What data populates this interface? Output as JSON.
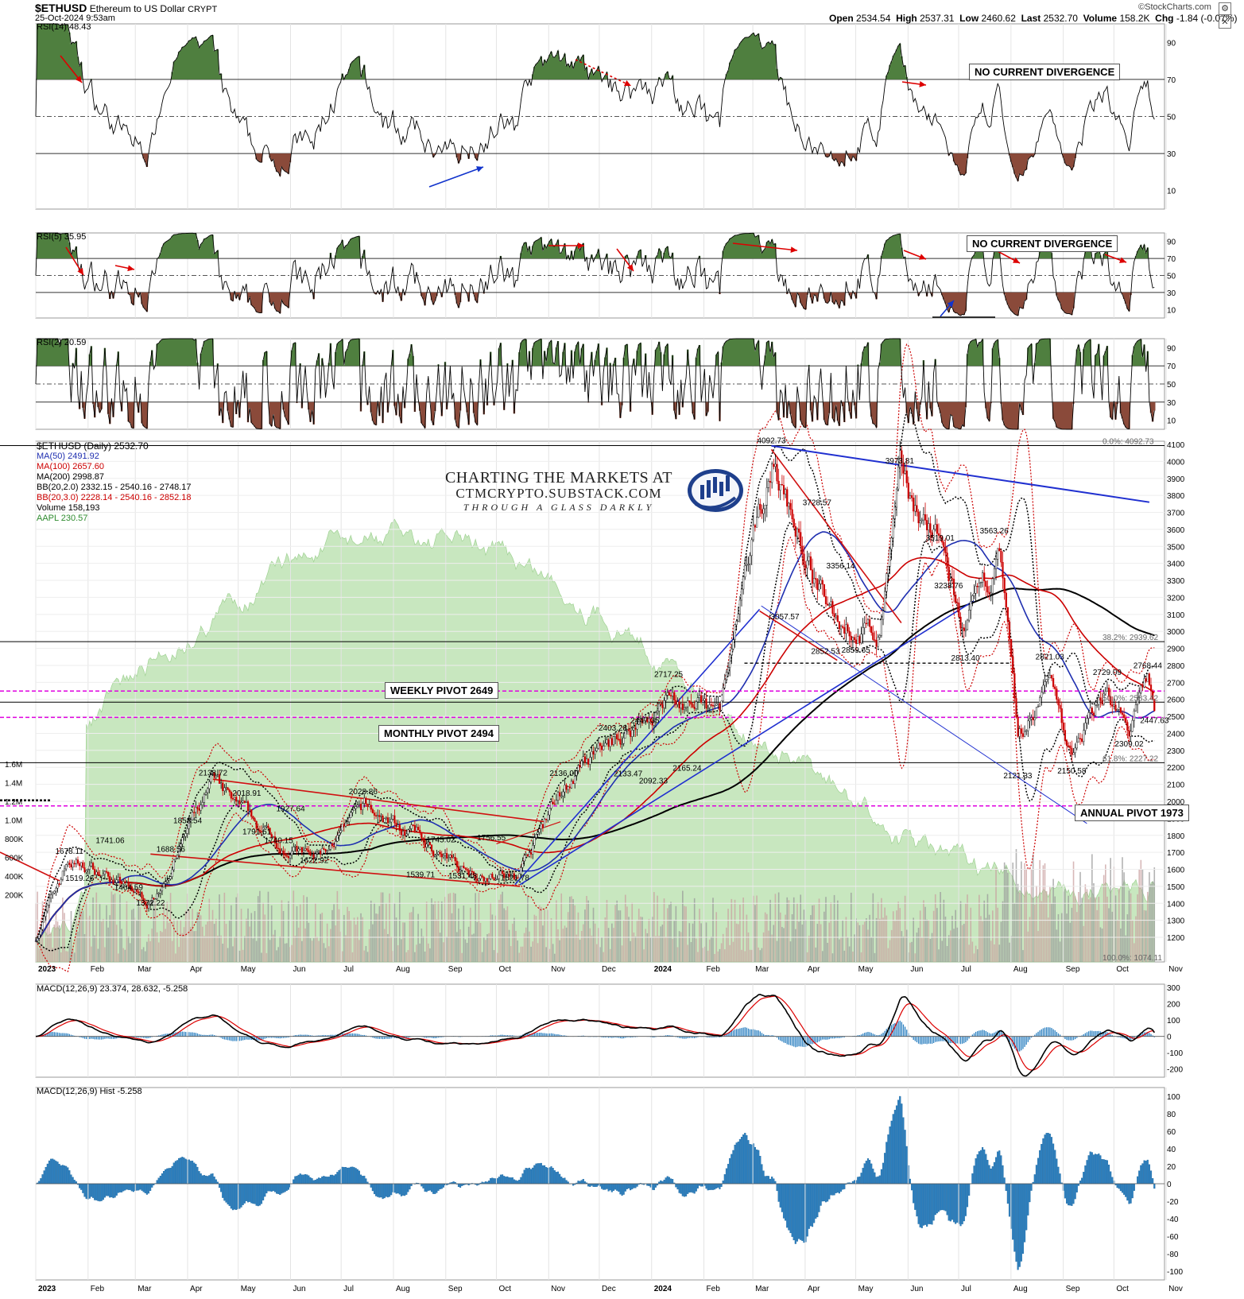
{
  "header": {
    "symbol": "$ETHUSD",
    "description": "Ethereum to US Dollar",
    "exchange": "CRYPT",
    "datetime": "25-Oct-2024 9:53am",
    "open_label": "Open",
    "open": "2534.54",
    "high_label": "High",
    "high": "2537.31",
    "low_label": "Low",
    "low": "2460.62",
    "last_label": "Last",
    "last": "2532.70",
    "volume_label": "Volume",
    "volume": "158.2K",
    "chg_label": "Chg",
    "chg": "-1.84 (-0.07%)",
    "watermark": "©StockCharts.com",
    "settings_icon": "gear-icon",
    "close_icon": "close-icon"
  },
  "logo": {
    "line1": "CHARTING THE MARKETS AT",
    "line2": "CTMCRYPTO.SUBSTACK.COM",
    "line3": "THROUGH A GLASS DARKLY"
  },
  "main_legend": [
    {
      "text": "$ETHUSD (Daily) 2532.70",
      "color": "#000000"
    },
    {
      "text": "MA(50) 2491.92",
      "color": "#1f2fb0"
    },
    {
      "text": "MA(100) 2657.60",
      "color": "#cc0000"
    },
    {
      "text": "MA(200) 2998.87",
      "color": "#000000"
    },
    {
      "text": "BB(20,2.0) 2332.15 - 2540.16 - 2748.17",
      "color": "#000000"
    },
    {
      "text": "BB(20,3.0) 2228.14 - 2540.16 - 2852.18",
      "color": "#cc0000"
    },
    {
      "text": "Volume 158,193",
      "color": "#000000"
    },
    {
      "text": "AAPL 230.57",
      "color": "#2e8b2e"
    }
  ],
  "annotations": {
    "rsi14_div": "NO CURRENT DIVERGENCE",
    "rsi5_div": "NO CURRENT DIVERGENCE",
    "weekly_pivot": "WEEKLY PIVOT 2649",
    "monthly_pivot": "MONTHLY PIVOT 2494",
    "annual_pivot": "ANNUAL PIVOT 1973"
  },
  "colors": {
    "rsi_overbought_fill": "#4f7f3f",
    "rsi_oversold_fill": "#8a4a3a",
    "aapl_area": "#bfe3b4",
    "macd_hist": "#2a7fc0",
    "pivot_magenta": "#e000e0",
    "trend_blue": "#1f2fd0",
    "trend_red": "#d01010"
  },
  "chart_data": [
    {
      "type": "line",
      "title": "RSI(14) 48.43",
      "ylim": [
        0,
        100
      ],
      "y_ticks": [
        "90",
        "70",
        "50",
        "30",
        "10"
      ],
      "levels": [
        70,
        50,
        30
      ],
      "last_value": 48.43
    },
    {
      "type": "line",
      "title": "RSI(5) 35.95",
      "ylim": [
        0,
        100
      ],
      "y_ticks": [
        "90",
        "70",
        "50",
        "30",
        "10"
      ],
      "levels": [
        70,
        50,
        30
      ],
      "last_value": 35.95
    },
    {
      "type": "line",
      "title": "RSI(2) 20.59",
      "ylim": [
        0,
        100
      ],
      "y_ticks": [
        "90",
        "70",
        "50",
        "30",
        "10"
      ],
      "levels": [
        70,
        50,
        30
      ],
      "last_value": 20.59
    },
    {
      "type": "line",
      "title": "$ETHUSD (Daily) 2532.70",
      "x_ticks": [
        "2023",
        "Feb",
        "Mar",
        "Apr",
        "May",
        "Jun",
        "Jul",
        "Aug",
        "Sep",
        "Oct",
        "Nov",
        "Dec",
        "2024",
        "Feb",
        "Mar",
        "Apr",
        "May",
        "Jun",
        "Jul",
        "Aug",
        "Sep",
        "Oct",
        "Nov"
      ],
      "ylim": [
        1074,
        4100
      ],
      "y_ticks": [
        "4100",
        "4000",
        "3900",
        "3800",
        "3700",
        "3600",
        "3500",
        "3400",
        "3300",
        "3200",
        "3100",
        "3000",
        "2900",
        "2800",
        "2700",
        "2600",
        "2500",
        "2400",
        "2300",
        "2200",
        "2100",
        "2000",
        "1900",
        "1800",
        "1700",
        "1600",
        "1500",
        "1400",
        "1300",
        "1200"
      ],
      "volume_ticks": [
        "1.6M",
        "1.4M",
        "1.2M",
        "1.0M",
        "800K",
        "600K",
        "400K",
        "200K"
      ],
      "fib_labels": [
        {
          "text": "0.0%: 4092.73",
          "value": 4092.73
        },
        {
          "text": "38.2%: 2939.62",
          "value": 2939.62
        },
        {
          "text": "50.0%: 2583.42",
          "value": 2583.42
        },
        {
          "text": "61.8%: 2227.22",
          "value": 2227.22
        },
        {
          "text": "100.0%: 1074.11",
          "value": 1074.11
        }
      ],
      "price_series": {
        "name": "$ETHUSD",
        "points": [
          {
            "date": "2023-01-01",
            "close": 1200
          },
          {
            "date": "2023-01-20",
            "close": 1650
          },
          {
            "date": "2023-02-10",
            "close": 1580
          },
          {
            "date": "2023-03-10",
            "close": 1400
          },
          {
            "date": "2023-04-15",
            "close": 2100
          },
          {
            "date": "2023-05-15",
            "close": 1820
          },
          {
            "date": "2023-06-15",
            "close": 1650
          },
          {
            "date": "2023-07-15",
            "close": 1950
          },
          {
            "date": "2023-08-15",
            "close": 1800
          },
          {
            "date": "2023-09-01",
            "close": 1640
          },
          {
            "date": "2023-10-12",
            "close": 1540
          },
          {
            "date": "2023-11-10",
            "close": 2080
          },
          {
            "date": "2023-12-10",
            "close": 2350
          },
          {
            "date": "2024-01-12",
            "close": 2600
          },
          {
            "date": "2024-02-10",
            "close": 2500
          },
          {
            "date": "2024-03-12",
            "close": 4000
          },
          {
            "date": "2024-04-15",
            "close": 3100
          },
          {
            "date": "2024-05-15",
            "close": 2950
          },
          {
            "date": "2024-05-27",
            "close": 3900
          },
          {
            "date": "2024-06-20",
            "close": 3500
          },
          {
            "date": "2024-07-05",
            "close": 2950
          },
          {
            "date": "2024-07-25",
            "close": 3450
          },
          {
            "date": "2024-08-05",
            "close": 2300
          },
          {
            "date": "2024-08-25",
            "close": 2750
          },
          {
            "date": "2024-09-06",
            "close": 2250
          },
          {
            "date": "2024-09-27",
            "close": 2680
          },
          {
            "date": "2024-10-10",
            "close": 2380
          },
          {
            "date": "2024-10-21",
            "close": 2700
          },
          {
            "date": "2024-10-25",
            "close": 2532.7
          }
        ]
      },
      "price_labels": [
        {
          "text": "4092.73",
          "date": "2024-03-12",
          "value": 4092.73
        },
        {
          "text": "3973.81",
          "date": "2024-05-27",
          "value": 3973.81
        },
        {
          "text": "3728.57",
          "date": "2024-04-08",
          "value": 3728.57
        },
        {
          "text": "3563.26",
          "date": "2024-07-22",
          "value": 3563.26
        },
        {
          "text": "3519.01",
          "date": "2024-06-20",
          "value": 3519.01
        },
        {
          "text": "3356.14",
          "date": "2024-04-22",
          "value": 3356.14
        },
        {
          "text": "3238.76",
          "date": "2024-06-25",
          "value": 3238.76
        },
        {
          "text": "3057.57",
          "date": "2024-03-20",
          "value": 3057.57
        },
        {
          "text": "2852.53",
          "date": "2024-04-13",
          "value": 2852.53
        },
        {
          "text": "2859.65",
          "date": "2024-05-01",
          "value": 2859.65
        },
        {
          "text": "2813.40",
          "date": "2024-07-05",
          "value": 2813.4
        },
        {
          "text": "2821.03",
          "date": "2024-08-24",
          "value": 2821.03
        },
        {
          "text": "2768.44",
          "date": "2024-10-21",
          "value": 2768.44
        },
        {
          "text": "2729.09",
          "date": "2024-09-27",
          "value": 2729.09
        },
        {
          "text": "2717.25",
          "date": "2024-01-11",
          "value": 2717.25
        },
        {
          "text": "2447.63",
          "date": "2024-10-25",
          "value": 2447.63
        },
        {
          "text": "2447.35",
          "date": "2023-12-28",
          "value": 2447.35
        },
        {
          "text": "2403.28",
          "date": "2023-12-09",
          "value": 2403.28
        },
        {
          "text": "2309.02",
          "date": "2024-10-10",
          "value": 2309.02
        },
        {
          "text": "2150.58",
          "date": "2024-09-06",
          "value": 2150.58
        },
        {
          "text": "2138.72",
          "date": "2023-04-16",
          "value": 2138.72
        },
        {
          "text": "2136.00",
          "date": "2023-11-10",
          "value": 2136.0
        },
        {
          "text": "2133.47",
          "date": "2023-12-18",
          "value": 2133.47
        },
        {
          "text": "2121.33",
          "date": "2024-08-05",
          "value": 2121.33
        },
        {
          "text": "2092.33",
          "date": "2024-01-02",
          "value": 2092.33
        },
        {
          "text": "2165.24",
          "date": "2024-01-22",
          "value": 2165.24
        },
        {
          "text": "2028.86",
          "date": "2023-07-14",
          "value": 2028.86
        },
        {
          "text": "2018.91",
          "date": "2023-05-06",
          "value": 2018.91
        },
        {
          "text": "1927.64",
          "date": "2023-06-01",
          "value": 1927.64
        },
        {
          "text": "1858.54",
          "date": "2023-04-01",
          "value": 1858.54
        },
        {
          "text": "1791.61",
          "date": "2023-05-12",
          "value": 1791.61
        },
        {
          "text": "1756.55",
          "date": "2023-09-28",
          "value": 1756.55
        },
        {
          "text": "1745.02",
          "date": "2023-08-29",
          "value": 1745.02
        },
        {
          "text": "1741.06",
          "date": "2023-02-14",
          "value": 1741.06
        },
        {
          "text": "1740.15",
          "date": "2023-05-25",
          "value": 1740.15
        },
        {
          "text": "1688.56",
          "date": "2023-03-22",
          "value": 1688.56
        },
        {
          "text": "1678.11",
          "date": "2023-01-21",
          "value": 1678.11
        },
        {
          "text": "1622.92",
          "date": "2023-06-15",
          "value": 1622.92
        },
        {
          "text": "1539.71",
          "date": "2023-08-17",
          "value": 1539.71
        },
        {
          "text": "1531.48",
          "date": "2023-09-11",
          "value": 1531.48
        },
        {
          "text": "1521.78",
          "date": "2023-10-12",
          "value": 1521.78
        },
        {
          "text": "1519.26",
          "date": "2023-01-27",
          "value": 1519.26
        },
        {
          "text": "1464.59",
          "date": "2023-02-25",
          "value": 1464.59
        },
        {
          "text": "1372.22",
          "date": "2023-03-10",
          "value": 1372.22
        }
      ],
      "pivots": [
        {
          "name": "WEEKLY PIVOT 2649",
          "value": 2649
        },
        {
          "name": "MONTHLY PIVOT 2494",
          "value": 2494
        },
        {
          "name": "ANNUAL PIVOT 1973",
          "value": 1973
        }
      ],
      "ma_levels": {
        "MA50": 2491.92,
        "MA100": 2657.6,
        "MA200": 2998.87
      }
    },
    {
      "type": "line",
      "title": "MACD(12,26,9) 23.374, 28.632, -5.258",
      "ylim": [
        -250,
        320
      ],
      "y_ticks": [
        "300",
        "200",
        "100",
        "0",
        "-100",
        "-200"
      ],
      "macd": 23.374,
      "signal": 28.632,
      "hist": -5.258
    },
    {
      "type": "bar",
      "title": "MACD(12,26,9) Hist -5.258",
      "ylim": [
        -110,
        110
      ],
      "y_ticks": [
        "100",
        "80",
        "60",
        "40",
        "20",
        "0",
        "-20",
        "-40",
        "-60",
        "-80",
        "-100"
      ],
      "last_value": -5.258
    }
  ]
}
